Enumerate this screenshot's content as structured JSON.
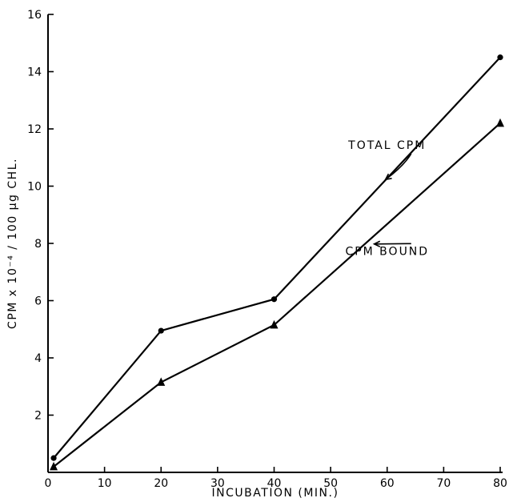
{
  "chart_data": {
    "type": "line",
    "title": "",
    "xlabel": "INCUBATION (MIN.)",
    "ylabel": "CPM x 10⁻⁴ / 100 µg CHL.",
    "xlim": [
      0,
      80
    ],
    "ylim": [
      0,
      16
    ],
    "xticks": [
      0,
      10,
      20,
      30,
      40,
      50,
      60,
      70,
      80
    ],
    "yticks": [
      2,
      4,
      6,
      8,
      10,
      12,
      14,
      16
    ],
    "grid": false,
    "series": [
      {
        "name": "TOTAL CPM",
        "marker": "circle",
        "x": [
          1,
          20,
          40,
          80
        ],
        "values": [
          0.5,
          4.95,
          6.05,
          14.5
        ]
      },
      {
        "name": "CPM BOUND",
        "marker": "triangle",
        "x": [
          1,
          20,
          40,
          80
        ],
        "values": [
          0.2,
          3.15,
          5.15,
          12.2
        ]
      }
    ],
    "annotations": [
      {
        "text": "TOTAL CPM",
        "series": 0,
        "points_to_x": 59,
        "label_at": [
          60,
          11.3
        ]
      },
      {
        "text": "CPM BOUND",
        "series": 1,
        "points_to_x": 57,
        "label_at": [
          60,
          7.6
        ]
      }
    ]
  }
}
